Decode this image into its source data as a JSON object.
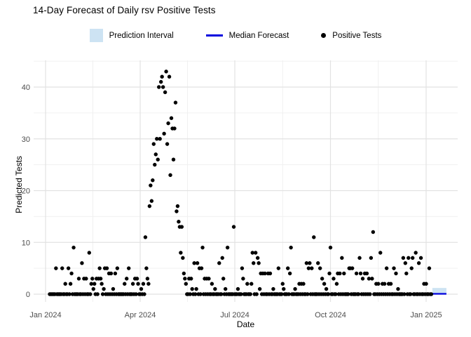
{
  "title": "14-Day Forecast of Daily rsv Positive Tests",
  "legend": {
    "items": [
      {
        "name": "prediction-interval",
        "label": "Prediction Interval",
        "color": "#CDE3F3",
        "type": "band"
      },
      {
        "name": "median-forecast",
        "label": "Median Forecast",
        "color": "#0000DE",
        "type": "line"
      },
      {
        "name": "positive-tests",
        "label": "Positive Tests",
        "color": "#000000",
        "type": "point"
      }
    ]
  },
  "axes": {
    "x_label": "Date",
    "y_label": "Predicted Tests"
  },
  "chart_data": {
    "type": "scatter",
    "title": "14-Day Forecast of Daily rsv Positive Tests",
    "xlabel": "Date",
    "ylabel": "Predicted Tests",
    "x_unit": "days since 2024-01-01",
    "x_ticks": [
      {
        "day": 0,
        "label": "Jan 2024"
      },
      {
        "day": 91,
        "label": "Apr 2024"
      },
      {
        "day": 182,
        "label": "Jul 2024"
      },
      {
        "day": 274,
        "label": "Oct 2024"
      },
      {
        "day": 366,
        "label": "Jan 2025"
      }
    ],
    "y_ticks": [
      {
        "value": 0,
        "label": "0"
      },
      {
        "value": 10,
        "label": "10"
      },
      {
        "value": 20,
        "label": "20"
      },
      {
        "value": 30,
        "label": "30"
      },
      {
        "value": 40,
        "label": "40"
      }
    ],
    "grid": {
      "y_minor": [
        5,
        15,
        25,
        35,
        45
      ],
      "x_minor_days": [
        45.5,
        136.5,
        228,
        320
      ],
      "grid_on": true,
      "legend_position": "top-center"
    },
    "ylim": [
      0,
      45
    ],
    "xlim_days": [
      -11,
      397
    ],
    "observed": {
      "day_range": [
        4,
        371
      ],
      "default_value": 0,
      "nonzero_points": [
        [
          10,
          5
        ],
        [
          16,
          5
        ],
        [
          19,
          2
        ],
        [
          22,
          5
        ],
        [
          24,
          2
        ],
        [
          25,
          4
        ],
        [
          27,
          9
        ],
        [
          32,
          3
        ],
        [
          35,
          6
        ],
        [
          37,
          3
        ],
        [
          39,
          3
        ],
        [
          42,
          8
        ],
        [
          44,
          2
        ],
        [
          45,
          3
        ],
        [
          46,
          1
        ],
        [
          47,
          2
        ],
        [
          49,
          3
        ],
        [
          51,
          3
        ],
        [
          52,
          5
        ],
        [
          53,
          3
        ],
        [
          54,
          2
        ],
        [
          56,
          1
        ],
        [
          57,
          5
        ],
        [
          59,
          5
        ],
        [
          61,
          4
        ],
        [
          63,
          4
        ],
        [
          65,
          1
        ],
        [
          67,
          4
        ],
        [
          69,
          5
        ],
        [
          76,
          2
        ],
        [
          78,
          3
        ],
        [
          80,
          5
        ],
        [
          84,
          2
        ],
        [
          86,
          3
        ],
        [
          88,
          3
        ],
        [
          89,
          2
        ],
        [
          92,
          1
        ],
        [
          94,
          2
        ],
        [
          96,
          11
        ],
        [
          97,
          5
        ],
        [
          98,
          3
        ],
        [
          99,
          2
        ],
        [
          100,
          17
        ],
        [
          101,
          21
        ],
        [
          102,
          18
        ],
        [
          103,
          22
        ],
        [
          104,
          29
        ],
        [
          105,
          25
        ],
        [
          106,
          27
        ],
        [
          107,
          30
        ],
        [
          108,
          26
        ],
        [
          109,
          40
        ],
        [
          110,
          30
        ],
        [
          111,
          41
        ],
        [
          112,
          42
        ],
        [
          113,
          40
        ],
        [
          114,
          31
        ],
        [
          115,
          39
        ],
        [
          116,
          43
        ],
        [
          117,
          29
        ],
        [
          118,
          33
        ],
        [
          119,
          42
        ],
        [
          120,
          23
        ],
        [
          121,
          34
        ],
        [
          122,
          32
        ],
        [
          123,
          26
        ],
        [
          124,
          32
        ],
        [
          125,
          37
        ],
        [
          126,
          16
        ],
        [
          127,
          17
        ],
        [
          128,
          14
        ],
        [
          129,
          13
        ],
        [
          130,
          8
        ],
        [
          131,
          13
        ],
        [
          132,
          7
        ],
        [
          133,
          4
        ],
        [
          134,
          3
        ],
        [
          135,
          2
        ],
        [
          138,
          3
        ],
        [
          140,
          3
        ],
        [
          141,
          1
        ],
        [
          143,
          6
        ],
        [
          145,
          1
        ],
        [
          146,
          6
        ],
        [
          148,
          5
        ],
        [
          150,
          5
        ],
        [
          151,
          9
        ],
        [
          153,
          3
        ],
        [
          155,
          3
        ],
        [
          157,
          3
        ],
        [
          160,
          2
        ],
        [
          163,
          1
        ],
        [
          167,
          6
        ],
        [
          170,
          7
        ],
        [
          171,
          3
        ],
        [
          173,
          1
        ],
        [
          175,
          9
        ],
        [
          181,
          13
        ],
        [
          185,
          1
        ],
        [
          189,
          5
        ],
        [
          190,
          3
        ],
        [
          194,
          2
        ],
        [
          198,
          2
        ],
        [
          199,
          8
        ],
        [
          200,
          6
        ],
        [
          202,
          8
        ],
        [
          204,
          7
        ],
        [
          205,
          6
        ],
        [
          206,
          1
        ],
        [
          207,
          4
        ],
        [
          209,
          4
        ],
        [
          211,
          4
        ],
        [
          214,
          4
        ],
        [
          216,
          4
        ],
        [
          219,
          1
        ],
        [
          224,
          5
        ],
        [
          228,
          2
        ],
        [
          229,
          1
        ],
        [
          233,
          5
        ],
        [
          235,
          4
        ],
        [
          236,
          9
        ],
        [
          240,
          1
        ],
        [
          244,
          2
        ],
        [
          246,
          2
        ],
        [
          248,
          2
        ],
        [
          251,
          6
        ],
        [
          253,
          5
        ],
        [
          254,
          6
        ],
        [
          256,
          5
        ],
        [
          258,
          11
        ],
        [
          262,
          6
        ],
        [
          264,
          5
        ],
        [
          266,
          3
        ],
        [
          268,
          2
        ],
        [
          270,
          1
        ],
        [
          273,
          4
        ],
        [
          274,
          9
        ],
        [
          277,
          3
        ],
        [
          280,
          2
        ],
        [
          281,
          4
        ],
        [
          283,
          4
        ],
        [
          285,
          7
        ],
        [
          287,
          4
        ],
        [
          292,
          5
        ],
        [
          293,
          5
        ],
        [
          295,
          5
        ],
        [
          299,
          4
        ],
        [
          302,
          7
        ],
        [
          303,
          4
        ],
        [
          305,
          3
        ],
        [
          307,
          4
        ],
        [
          309,
          4
        ],
        [
          311,
          3
        ],
        [
          313,
          7
        ],
        [
          314,
          3
        ],
        [
          315,
          12
        ],
        [
          318,
          2
        ],
        [
          320,
          2
        ],
        [
          322,
          8
        ],
        [
          324,
          2
        ],
        [
          326,
          2
        ],
        [
          328,
          5
        ],
        [
          330,
          2
        ],
        [
          332,
          2
        ],
        [
          335,
          5
        ],
        [
          337,
          4
        ],
        [
          339,
          1
        ],
        [
          344,
          7
        ],
        [
          346,
          6
        ],
        [
          347,
          4
        ],
        [
          349,
          7
        ],
        [
          352,
          5
        ],
        [
          353,
          7
        ],
        [
          356,
          8
        ],
        [
          359,
          6
        ],
        [
          361,
          7
        ],
        [
          364,
          2
        ],
        [
          366,
          2
        ],
        [
          369,
          5
        ]
      ]
    },
    "forecast": {
      "day_start": 372,
      "day_end": 385.5,
      "median_value": 0,
      "interval_low": 0,
      "interval_high": 1.2
    }
  }
}
